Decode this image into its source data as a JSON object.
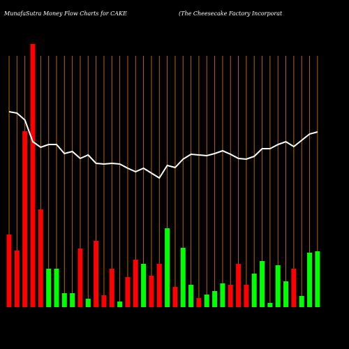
{
  "chart_data": {
    "type": "bar",
    "title": "MunafaSutra  Money Flow  Charts for CAKE",
    "subtitle": "(The   Cheesecake   Factory Incorporat",
    "ylim": [
      0,
      380
    ],
    "grid": true,
    "grid_color": "#b8650f",
    "background": "#000000",
    "series": [
      {
        "type": "bar",
        "values": [
          104,
          81,
          252,
          377,
          140,
          55,
          55,
          20,
          20,
          84,
          12,
          95,
          17,
          55,
          8,
          43,
          68,
          62,
          45,
          62,
          113,
          29,
          85,
          32,
          13,
          18,
          23,
          34,
          32,
          62,
          32,
          48,
          66,
          6,
          60,
          37,
          55,
          16,
          78,
          80
        ],
        "colors": [
          "#ff0000",
          "#ff0000",
          "#ff0000",
          "#ff0000",
          "#ff0000",
          "#00ff00",
          "#00ff00",
          "#00ff00",
          "#00ff00",
          "#ff0000",
          "#00ff00",
          "#ff0000",
          "#ff0000",
          "#ff0000",
          "#00ff00",
          "#ff0000",
          "#ff0000",
          "#00ff00",
          "#ff0000",
          "#ff0000",
          "#00ff00",
          "#ff0000",
          "#00ff00",
          "#00ff00",
          "#ff0000",
          "#00ff00",
          "#00ff00",
          "#00ff00",
          "#ff0000",
          "#ff0000",
          "#ff0000",
          "#00ff00",
          "#00ff00",
          "#00ff00",
          "#00ff00",
          "#00ff00",
          "#ff0000",
          "#00ff00",
          "#00ff00",
          "#00ff00"
        ]
      },
      {
        "type": "line",
        "color": "#ffffff",
        "values": [
          280,
          278,
          268,
          237,
          229,
          233,
          233,
          220,
          223,
          213,
          218,
          206,
          205,
          206,
          205,
          199,
          194,
          199,
          192,
          185,
          203,
          200,
          212,
          219,
          218,
          217,
          220,
          224,
          219,
          213,
          212,
          216,
          227,
          227,
          233,
          237,
          230,
          239,
          248,
          251
        ]
      }
    ]
  }
}
